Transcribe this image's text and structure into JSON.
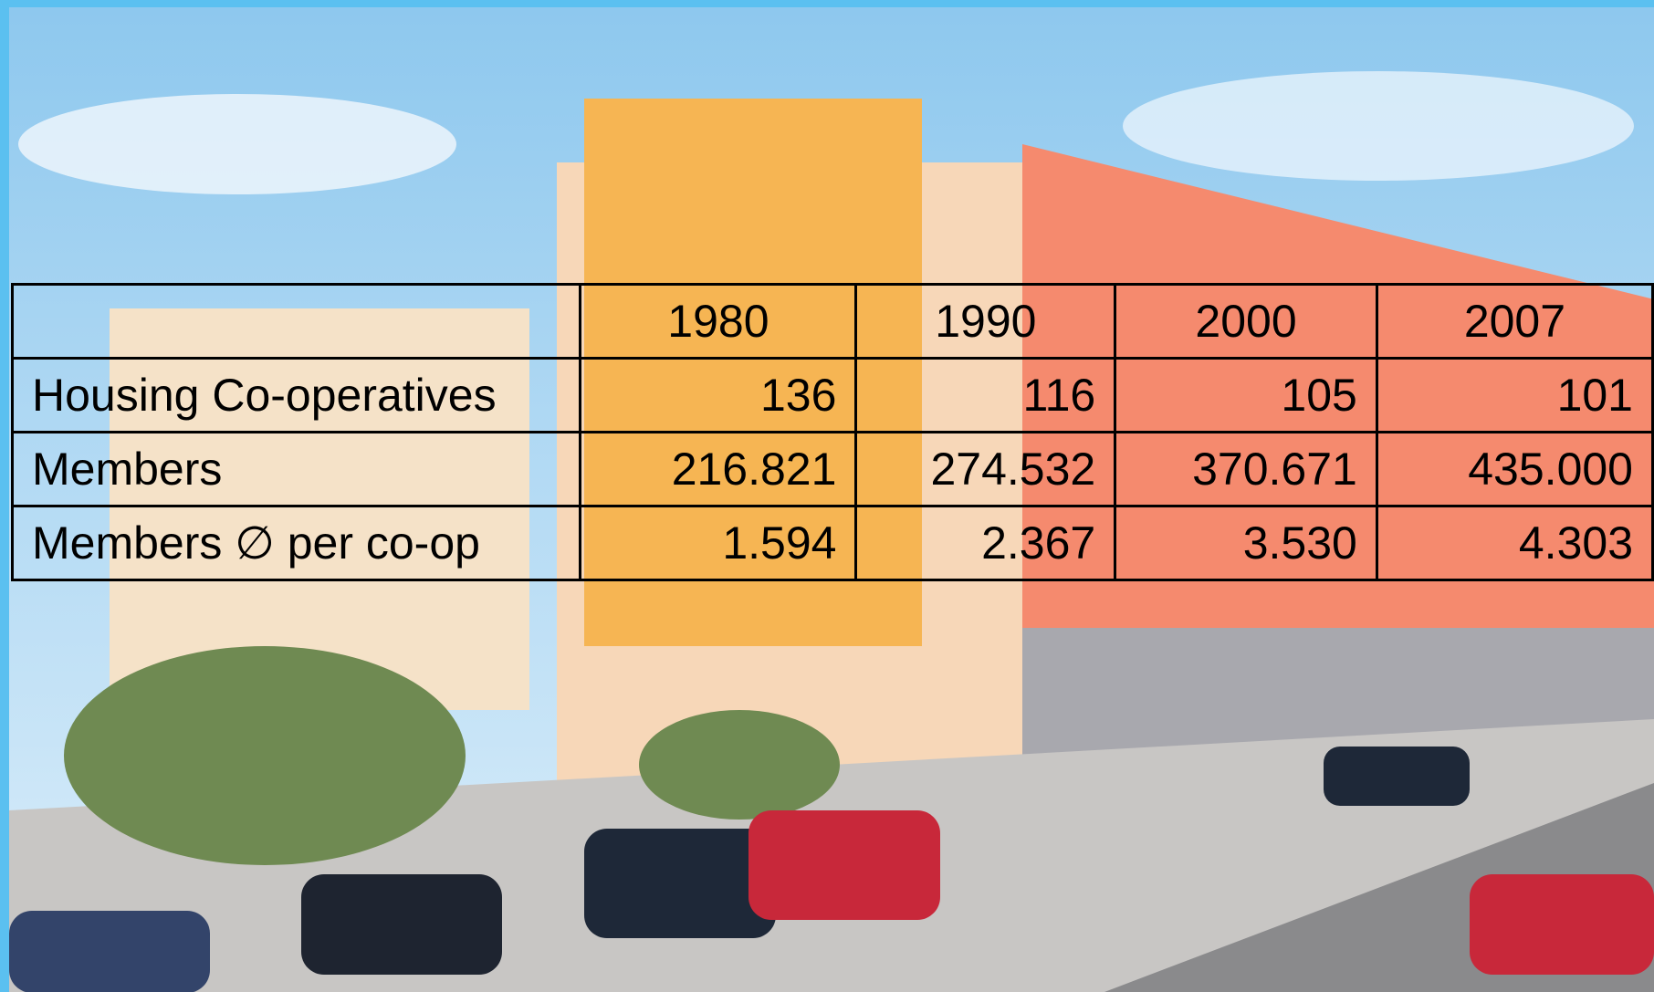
{
  "table": {
    "columns": [
      "1980",
      "1990",
      "2000",
      "2007"
    ],
    "rows": [
      {
        "label": "Housing Co-operatives",
        "values": [
          "136",
          "116",
          "105",
          "101"
        ]
      },
      {
        "label": "Members",
        "values": [
          "216.821",
          "274.532",
          "370.671",
          "435.000"
        ]
      },
      {
        "label": "Members ∅ per co-op",
        "values": [
          "1.594",
          "2.367",
          "3.530",
          "4.303"
        ]
      }
    ]
  }
}
